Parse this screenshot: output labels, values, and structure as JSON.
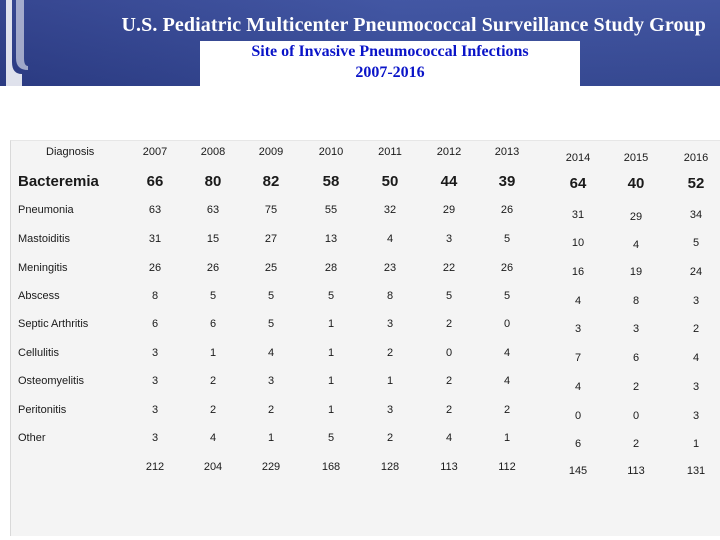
{
  "header": {
    "title": "U.S. Pediatric Multicenter Pneumococcal Surveillance Study Group",
    "subtitle": "Site of Invasive Pneumococcal Infections",
    "years_range": "2007-2016"
  },
  "colors": {
    "header_bg": "#3a4d99",
    "subtitle": "#0a14c8"
  },
  "table": {
    "diagnosis_header": "Diagnosis",
    "years": [
      "2007",
      "2008",
      "2009",
      "2010",
      "2011",
      "2012",
      "2013",
      "2014",
      "2015",
      "2016"
    ],
    "rows": [
      {
        "label": "Bacteremia",
        "values": [
          "66",
          "80",
          "82",
          "58",
          "50",
          "44",
          "39",
          "64",
          "40",
          "52"
        ]
      },
      {
        "label": "Pneumonia",
        "values": [
          "63",
          "63",
          "75",
          "55",
          "32",
          "29",
          "26",
          "31",
          "29",
          "34"
        ]
      },
      {
        "label": "Mastoiditis",
        "values": [
          "31",
          "15",
          "27",
          "13",
          "4",
          "3",
          "5",
          "10",
          "4",
          "5"
        ]
      },
      {
        "label": "Meningitis",
        "values": [
          "26",
          "26",
          "25",
          "28",
          "23",
          "22",
          "26",
          "16",
          "19",
          "24"
        ]
      },
      {
        "label": "Abscess",
        "values": [
          "8",
          "5",
          "5",
          "5",
          "8",
          "5",
          "5",
          "4",
          "8",
          "3"
        ]
      },
      {
        "label": "Septic Arthritis",
        "values": [
          "6",
          "6",
          "5",
          "1",
          "3",
          "2",
          "0",
          "3",
          "3",
          "2"
        ]
      },
      {
        "label": "Cellulitis",
        "values": [
          "3",
          "1",
          "4",
          "1",
          "2",
          "0",
          "4",
          "7",
          "6",
          "4"
        ]
      },
      {
        "label": "Osteomyelitis",
        "values": [
          "3",
          "2",
          "3",
          "1",
          "1",
          "2",
          "4",
          "4",
          "2",
          "3"
        ]
      },
      {
        "label": "Peritonitis",
        "values": [
          "3",
          "2",
          "2",
          "1",
          "3",
          "2",
          "2",
          "0",
          "0",
          "3"
        ]
      },
      {
        "label": "Other",
        "values": [
          "3",
          "4",
          "1",
          "5",
          "2",
          "4",
          "1",
          "6",
          "2",
          "1"
        ]
      }
    ],
    "totals": [
      "212",
      "204",
      "229",
      "168",
      "128",
      "113",
      "112",
      "145",
      "113",
      "131"
    ]
  }
}
